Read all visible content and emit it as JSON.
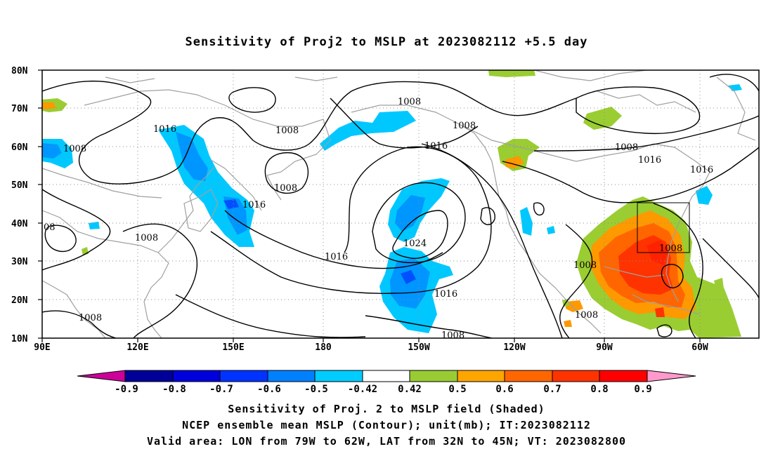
{
  "title": "Sensitivity of Proj2 to MSLP at 2023082112 +5.5 day",
  "map": {
    "type": "filled-contour-map",
    "lat_ticks": [
      "80N",
      "70N",
      "60N",
      "50N",
      "40N",
      "30N",
      "20N",
      "10N"
    ],
    "lon_ticks": [
      "90E",
      "120E",
      "150E",
      "180",
      "150W",
      "120W",
      "90W",
      "60W"
    ],
    "contour_labels": [
      "1008",
      "1016",
      "1016",
      "1008",
      "08",
      "1008",
      "1008",
      "1008",
      "1016",
      "1016",
      "1024",
      "1008",
      "1008",
      "1016",
      "1008",
      "1008",
      "1016",
      "1016",
      "1008",
      "1008",
      "1008"
    ],
    "contour_color": "#000000",
    "coastline_color": "#a0a0a0",
    "grid": "dotted",
    "shading": [
      {
        "label": "positive 0.5",
        "color": "#9acd32"
      },
      {
        "label": "positive 0.6",
        "color": "#ff9900"
      },
      {
        "label": "positive 0.7",
        "color": "#ff6600"
      },
      {
        "label": "positive 0.8",
        "color": "#ff3300"
      },
      {
        "label": "negative -0.5",
        "color": "#00c8ff"
      },
      {
        "label": "negative -0.6",
        "color": "#0096ff"
      },
      {
        "label": "negative -0.7",
        "color": "#0050ff"
      }
    ]
  },
  "colorbar": {
    "labels": [
      "-0.9",
      "-0.8",
      "-0.7",
      "-0.6",
      "-0.5",
      "-0.42",
      "0.42",
      "0.5",
      "0.6",
      "0.7",
      "0.8",
      "0.9"
    ],
    "colors": [
      "#000099",
      "#0000dd",
      "#0033ff",
      "#0080ff",
      "#00ccff",
      "#ffffff",
      "#99cc33",
      "#ffa500",
      "#ff6600",
      "#ff3300",
      "#ff0000"
    ],
    "low_arrow_color": "#cc0099",
    "high_arrow_color": "#ff99cc"
  },
  "captions": [
    "Sensitivity of Proj. 2 to MSLP field (Shaded)",
    "NCEP ensemble mean MSLP (Contour); unit(mb); IT:2023082112",
    "Valid area: LON from 79W to 62W, LAT from 32N to 45N; VT: 2023082800"
  ]
}
